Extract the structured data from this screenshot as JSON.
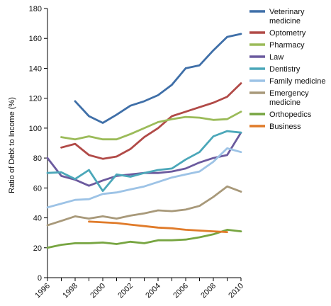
{
  "chart_data": {
    "type": "line",
    "ylabel": "Ratio of Debt to Income (%)",
    "xlabel": "",
    "ylim": [
      0,
      180
    ],
    "yticks": [
      0,
      20,
      40,
      60,
      80,
      100,
      120,
      140,
      160,
      180
    ],
    "xlim": [
      1996,
      2010
    ],
    "xticks": [
      1996,
      1998,
      2000,
      2002,
      2004,
      2006,
      2008,
      2010
    ],
    "grid": false,
    "legend_position": "right",
    "series": [
      {
        "name": "Veterinary medicine",
        "color": "#3F6FA8",
        "points": [
          [
            1998,
            118
          ],
          [
            1999,
            108
          ],
          [
            2000,
            103.5
          ],
          [
            2001,
            109
          ],
          [
            2002,
            115
          ],
          [
            2003,
            118
          ],
          [
            2004,
            122
          ],
          [
            2005,
            129
          ],
          [
            2006,
            140
          ],
          [
            2007,
            142
          ],
          [
            2008,
            152
          ],
          [
            2009,
            161
          ],
          [
            2010,
            163
          ]
        ]
      },
      {
        "name": "Optometry",
        "color": "#B14A47",
        "points": [
          [
            1997,
            87
          ],
          [
            1998,
            89.5
          ],
          [
            1999,
            82
          ],
          [
            2000,
            79.5
          ],
          [
            2001,
            81
          ],
          [
            2002,
            86
          ],
          [
            2003,
            94
          ],
          [
            2004,
            100
          ],
          [
            2005,
            108
          ],
          [
            2006,
            111
          ],
          [
            2007,
            114
          ],
          [
            2008,
            117
          ],
          [
            2009,
            121
          ],
          [
            2010,
            130
          ]
        ]
      },
      {
        "name": "Pharmacy",
        "color": "#9BBB59",
        "points": [
          [
            1997,
            94
          ],
          [
            1998,
            92.5
          ],
          [
            1999,
            94.5
          ],
          [
            2000,
            92.5
          ],
          [
            2001,
            92.5
          ],
          [
            2002,
            96
          ],
          [
            2003,
            100
          ],
          [
            2004,
            104
          ],
          [
            2005,
            106
          ],
          [
            2006,
            107.5
          ],
          [
            2007,
            107
          ],
          [
            2008,
            105.5
          ],
          [
            2009,
            106
          ],
          [
            2010,
            111
          ]
        ]
      },
      {
        "name": "Law",
        "color": "#6B5A9E",
        "points": [
          [
            1996,
            80
          ],
          [
            1997,
            68
          ],
          [
            1998,
            65.5
          ],
          [
            1999,
            61.5
          ],
          [
            2000,
            65
          ],
          [
            2001,
            68
          ],
          [
            2002,
            69
          ],
          [
            2003,
            70
          ],
          [
            2004,
            70
          ],
          [
            2005,
            71
          ],
          [
            2006,
            73
          ],
          [
            2007,
            77
          ],
          [
            2008,
            80
          ],
          [
            2009,
            82
          ],
          [
            2010,
            97
          ]
        ]
      },
      {
        "name": "Dentistry",
        "color": "#4BA7B9",
        "points": [
          [
            1996,
            70
          ],
          [
            1997,
            70.5
          ],
          [
            1998,
            66
          ],
          [
            1999,
            72
          ],
          [
            2000,
            58
          ],
          [
            2001,
            69
          ],
          [
            2002,
            67.5
          ],
          [
            2003,
            70
          ],
          [
            2004,
            72
          ],
          [
            2005,
            73
          ],
          [
            2006,
            79
          ],
          [
            2007,
            84
          ],
          [
            2008,
            94.5
          ],
          [
            2009,
            98
          ],
          [
            2010,
            97
          ]
        ]
      },
      {
        "name": "Family medicine",
        "color": "#9DC3E6",
        "points": [
          [
            1996,
            47
          ],
          [
            1997,
            49.5
          ],
          [
            1998,
            52
          ],
          [
            1999,
            52.5
          ],
          [
            2000,
            56
          ],
          [
            2001,
            57
          ],
          [
            2002,
            59
          ],
          [
            2003,
            61
          ],
          [
            2004,
            64
          ],
          [
            2005,
            67
          ],
          [
            2006,
            69
          ],
          [
            2007,
            71
          ],
          [
            2008,
            77.5
          ],
          [
            2009,
            86.5
          ],
          [
            2010,
            84
          ]
        ]
      },
      {
        "name": "Emergency medicine",
        "color": "#A8997A",
        "points": [
          [
            1996,
            35
          ],
          [
            1997,
            38
          ],
          [
            1998,
            41
          ],
          [
            1999,
            39.5
          ],
          [
            2000,
            41
          ],
          [
            2001,
            39.5
          ],
          [
            2002,
            41.5
          ],
          [
            2003,
            43
          ],
          [
            2004,
            45
          ],
          [
            2005,
            44.5
          ],
          [
            2006,
            45.5
          ],
          [
            2007,
            48
          ],
          [
            2008,
            54
          ],
          [
            2009,
            61
          ],
          [
            2010,
            57.5
          ]
        ]
      },
      {
        "name": "Orthopedics",
        "color": "#77A541",
        "points": [
          [
            1996,
            20
          ],
          [
            1997,
            22
          ],
          [
            1998,
            23
          ],
          [
            1999,
            23
          ],
          [
            2000,
            23.5
          ],
          [
            2001,
            22.5
          ],
          [
            2002,
            24
          ],
          [
            2003,
            23
          ],
          [
            2004,
            25
          ],
          [
            2005,
            25
          ],
          [
            2006,
            25.5
          ],
          [
            2007,
            27
          ],
          [
            2008,
            29
          ],
          [
            2009,
            32
          ],
          [
            2010,
            31
          ]
        ]
      },
      {
        "name": "Business",
        "color": "#E07B2A",
        "points": [
          [
            1999,
            37.5
          ],
          [
            2000,
            37
          ],
          [
            2001,
            36.5
          ],
          [
            2002,
            35.5
          ],
          [
            2003,
            34.5
          ],
          [
            2004,
            33.5
          ],
          [
            2005,
            33
          ],
          [
            2006,
            32
          ],
          [
            2007,
            31.5
          ],
          [
            2008,
            31
          ],
          [
            2009,
            30.5
          ]
        ]
      }
    ]
  }
}
